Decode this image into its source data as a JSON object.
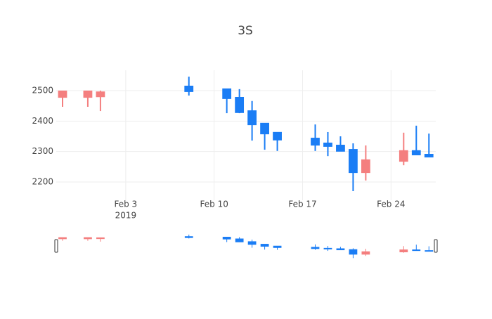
{
  "chart_data": {
    "type": "candlestick",
    "title": "3S",
    "x": [
      "2019-01-29",
      "2019-01-31",
      "2019-02-01",
      "2019-02-08",
      "2019-02-11",
      "2019-02-12",
      "2019-02-13",
      "2019-02-14",
      "2019-02-15",
      "2019-02-18",
      "2019-02-19",
      "2019-02-20",
      "2019-02-21",
      "2019-02-22",
      "2019-02-25",
      "2019-02-26",
      "2019-02-27"
    ],
    "open": [
      2479,
      2479,
      2481,
      2514,
      2505,
      2477,
      2433,
      2392,
      2362,
      2343,
      2327,
      2320,
      2306,
      2232,
      2269,
      2302,
      2290
    ],
    "high": [
      2500,
      2500,
      2500,
      2546,
      2505,
      2505,
      2466,
      2392,
      2362,
      2389,
      2364,
      2350,
      2327,
      2320,
      2362,
      2385,
      2359
    ],
    "low": [
      2447,
      2447,
      2433,
      2484,
      2426,
      2426,
      2336,
      2306,
      2302,
      2302,
      2285,
      2302,
      2170,
      2205,
      2255,
      2288,
      2283
    ],
    "close": [
      2498,
      2498,
      2495,
      2498,
      2475,
      2429,
      2389,
      2359,
      2339,
      2322,
      2318,
      2302,
      2232,
      2272,
      2302,
      2290,
      2283
    ],
    "increasing_color": "#f47f7f",
    "decreasing_color": "#1a7df5",
    "xlim": [
      "2019-01-28T12:00",
      "2019-02-27T13:00"
    ],
    "xticks": [
      {
        "value": "2019-02-03",
        "label": "Feb 3"
      },
      {
        "value": "2019-02-10",
        "label": "Feb 10"
      },
      {
        "value": "2019-02-17",
        "label": "Feb 17"
      },
      {
        "value": "2019-02-24",
        "label": "Feb 24"
      }
    ],
    "x_year_label": "2019",
    "ylim": [
      2140,
      2567
    ],
    "yticks": [
      2200,
      2300,
      2400,
      2500
    ],
    "grid": true,
    "rangeslider": true
  }
}
